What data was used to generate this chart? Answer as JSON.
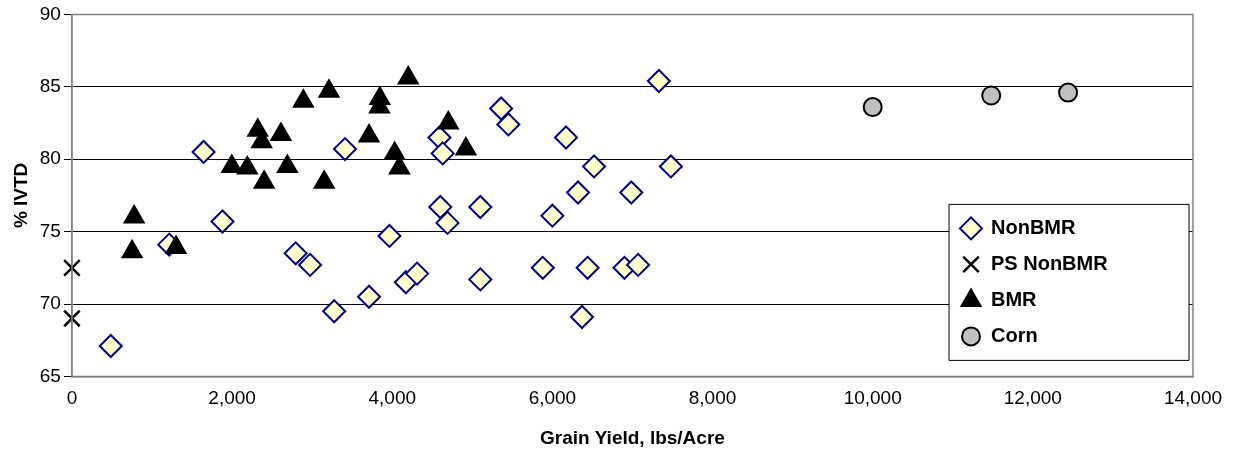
{
  "chart_data": {
    "type": "scatter",
    "xlabel": "Grain Yield, lbs/Acre",
    "ylabel": "% IVTD",
    "xlim": [
      0,
      14000
    ],
    "xticks": [
      0,
      {
        "value": 2000,
        "label": "2,000"
      },
      {
        "value": 4000,
        "label": "4,000"
      },
      {
        "value": 6000,
        "label": "6,000"
      },
      {
        "value": 8000,
        "label": "8,000"
      },
      {
        "value": 10000,
        "label": "10,000"
      },
      {
        "value": 12000,
        "label": "12,000"
      },
      {
        "value": 14000,
        "label": "14,000"
      }
    ],
    "ylim": [
      65,
      90
    ],
    "yticks": [
      65,
      70,
      75,
      80,
      85,
      90
    ],
    "grid": "y",
    "legend": "bottom right",
    "series": [
      {
        "name": "NonBMR",
        "color": "#ffffcc",
        "marker": "diamond",
        "x": [
          485,
          1215,
          1644,
          1880,
          2794,
          2974,
          3275,
          3410,
          3710,
          3965,
          4170,
          4310,
          4590,
          4630,
          4600,
          4690,
          5100,
          5100,
          5360,
          5450,
          5880,
          6000,
          6170,
          6320,
          6520,
          6370,
          6440,
          6900,
          6985,
          7070,
          7330,
          7480
        ],
        "values": [
          67.1,
          74.1,
          80.5,
          75.7,
          73.5,
          72.7,
          69.5,
          80.7,
          70.5,
          74.7,
          71.5,
          72.1,
          81.5,
          80.4,
          76.7,
          75.6,
          76.7,
          71.7,
          83.5,
          82.4,
          72.5,
          76.1,
          81.5,
          77.7,
          79.5,
          69.1,
          72.5,
          72.5,
          77.7,
          72.7,
          85.4,
          79.5
        ]
      },
      {
        "name": "PS NonBMR",
        "color": "#000000",
        "marker": "cross",
        "x": [
          0,
          0
        ],
        "values": [
          72.5,
          69.0
        ]
      },
      {
        "name": "BMR",
        "color": "#000000",
        "marker": "triangle",
        "x": [
          777,
          751,
          1300,
          1996,
          2190,
          2320,
          2370,
          2400,
          2610,
          2690,
          2890,
          3210,
          3150,
          3710,
          3845,
          3840,
          4030,
          4090,
          4200,
          4700,
          4920
        ],
        "values": [
          76.0,
          73.6,
          73.9,
          79.5,
          79.4,
          82.0,
          81.2,
          78.4,
          81.7,
          79.5,
          84.0,
          84.7,
          78.4,
          81.6,
          84.2,
          83.6,
          80.4,
          79.4,
          85.6,
          82.5,
          80.7
        ]
      },
      {
        "name": "Corn",
        "color": "#c0c0c0",
        "marker": "circle",
        "x": [
          10000,
          11480,
          12440
        ],
        "values": [
          83.6,
          84.4,
          84.6
        ]
      }
    ]
  }
}
